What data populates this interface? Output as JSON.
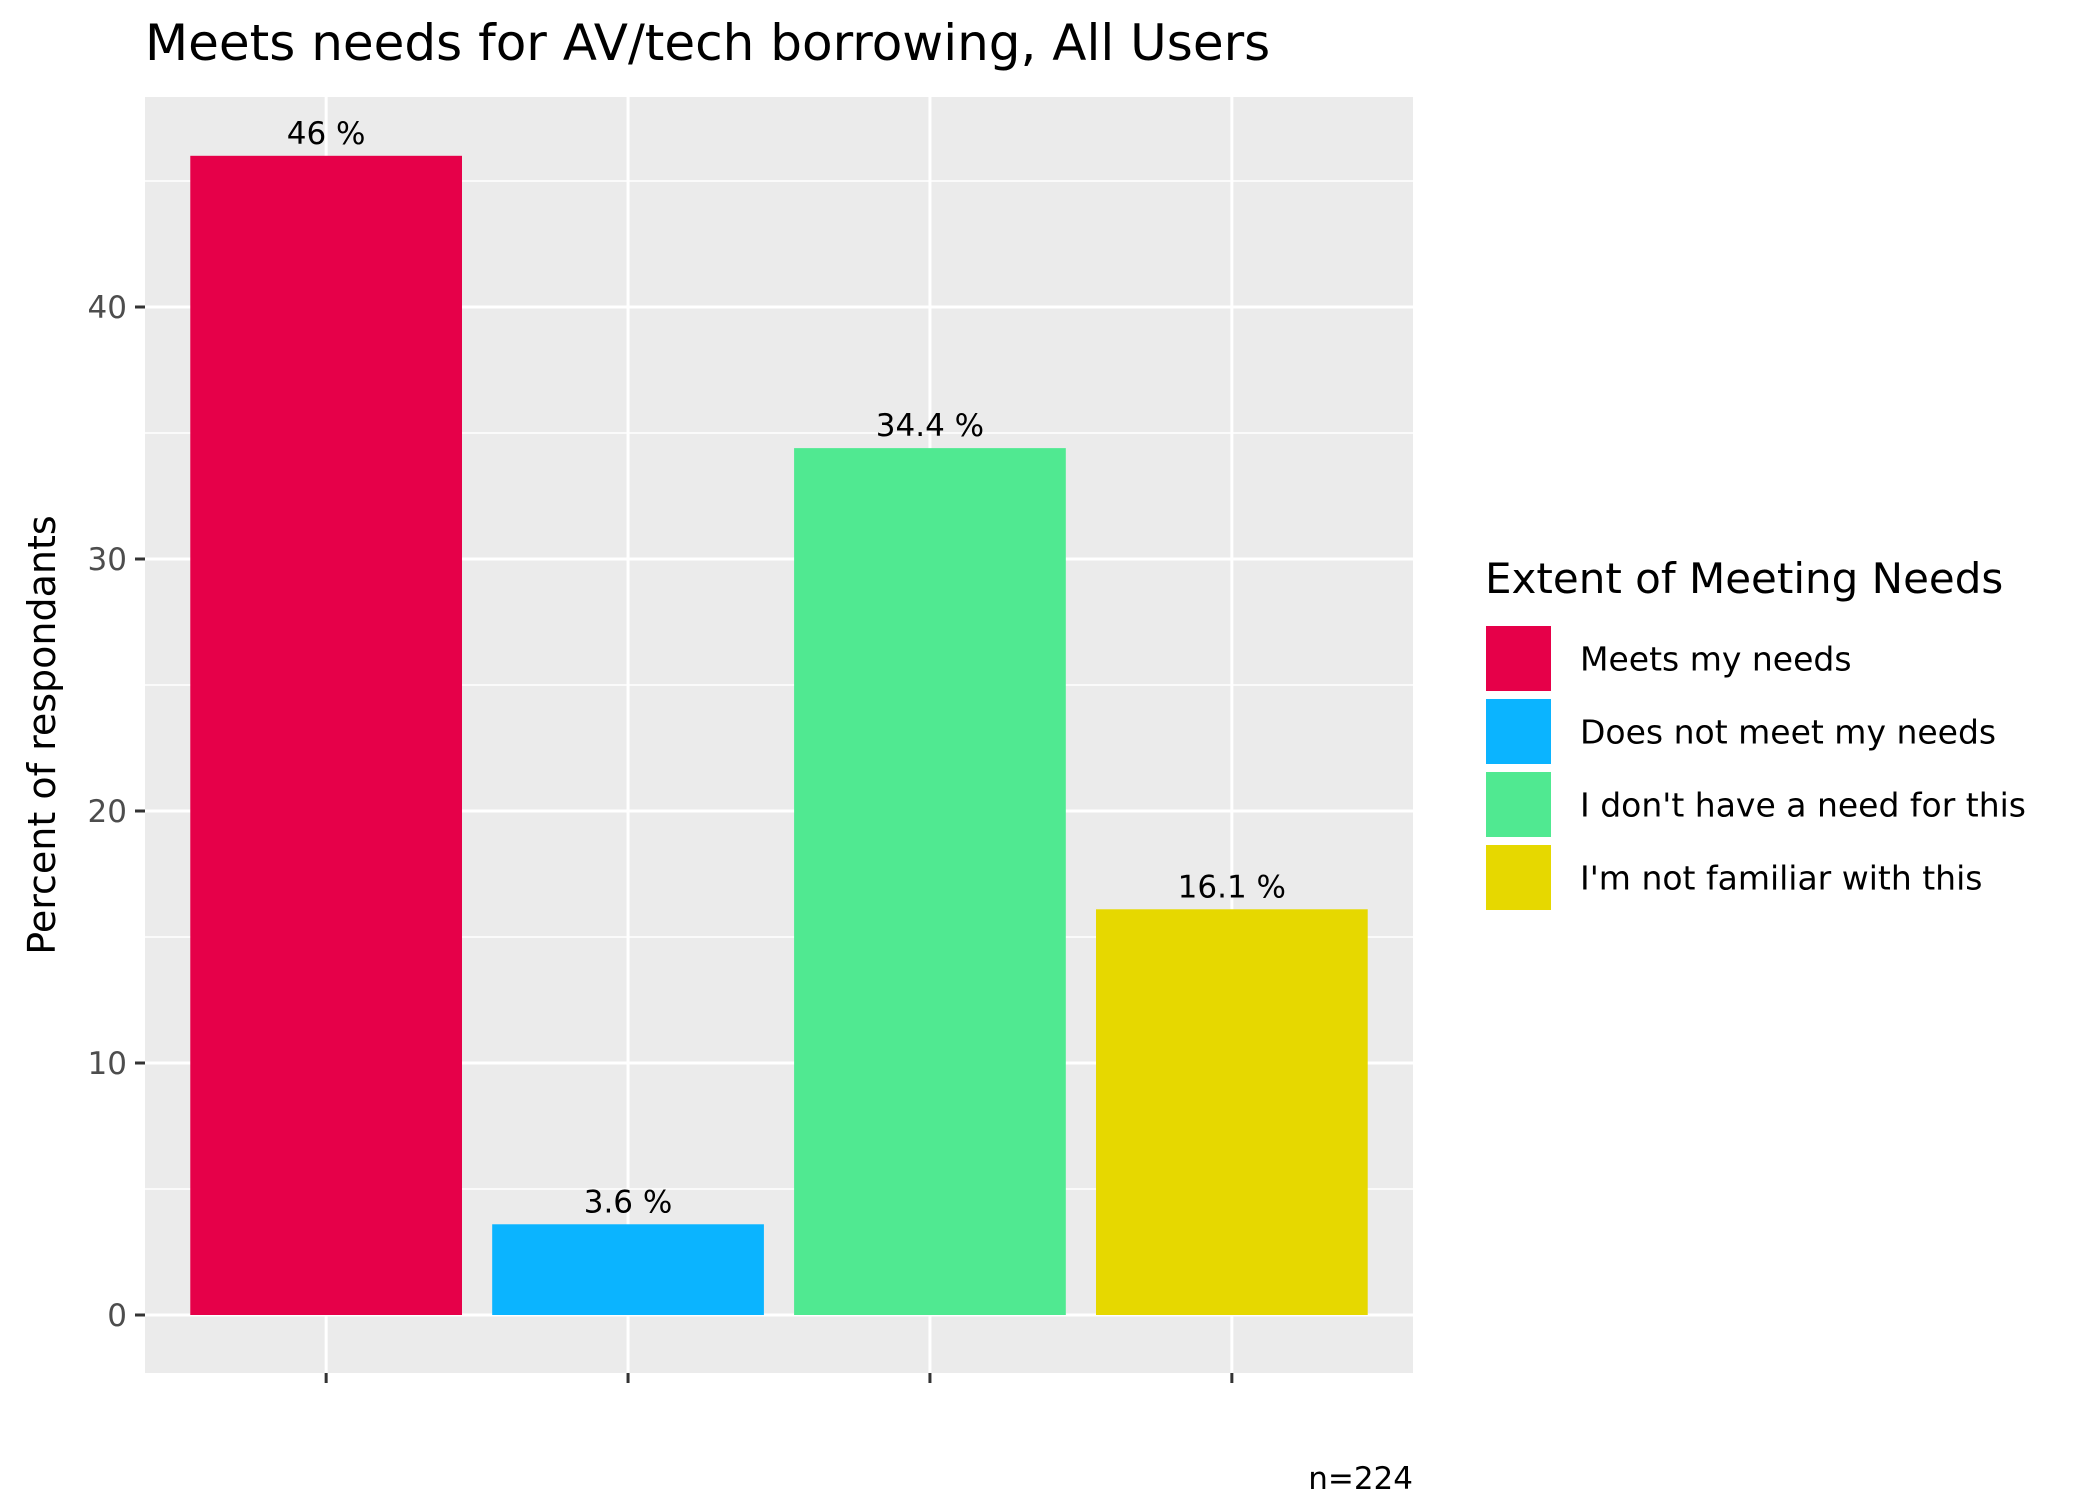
{
  "chart_data": {
    "type": "bar",
    "title": "Meets needs for AV/tech borrowing, All Users",
    "xlabel": "",
    "ylabel": "Percent of respondants",
    "caption": "n=224",
    "categories": [
      "Meets my needs",
      "Does not meet my needs",
      "I don't have a need for this",
      "I'm not familiar with this"
    ],
    "values": [
      46,
      3.6,
      34.4,
      16.1
    ],
    "value_labels": [
      "46 %",
      "3.6 %",
      "34.4 %",
      "16.1 %"
    ],
    "colors": [
      "#E60049",
      "#0BB4FF",
      "#50E991",
      "#E6D800"
    ],
    "ylim": [
      -2.3,
      48.3
    ],
    "yticks": [
      0,
      10,
      20,
      30,
      40
    ],
    "ytick_labels": [
      "0",
      "10",
      "20",
      "30",
      "40"
    ],
    "grid": true,
    "legend": {
      "title": "Extent of Meeting Needs",
      "position": "right",
      "items": [
        "Meets my needs",
        "Does not meet my needs",
        "I don't have a need for this",
        "I'm not familiar with this"
      ]
    },
    "colors_theme": {
      "panel_background": "#EBEBEB",
      "grid": "#FFFFFF",
      "tick_text": "#4D4D4D"
    }
  }
}
